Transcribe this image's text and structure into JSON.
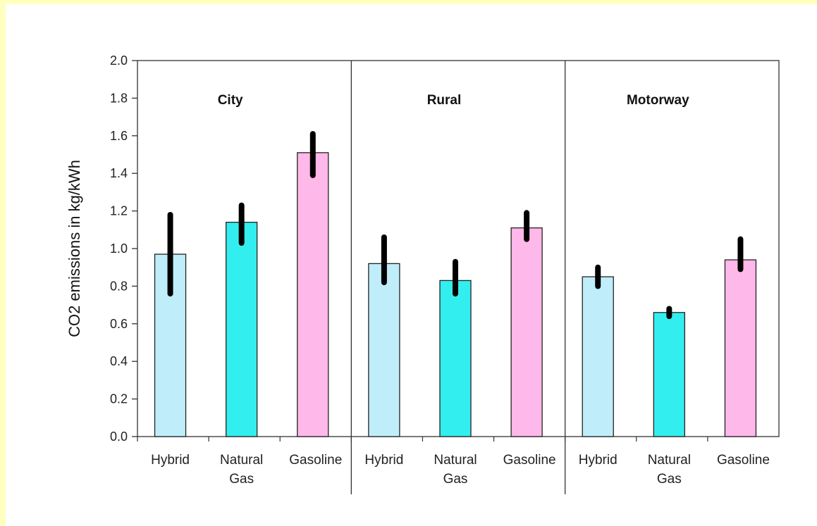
{
  "chart_data": {
    "type": "bar",
    "ylabel": "CO2 emissions in kg/kWh",
    "ylim": [
      0,
      2.0
    ],
    "yticks": [
      "0.0",
      "0.2",
      "0.4",
      "0.6",
      "0.8",
      "1.0",
      "1.2",
      "1.4",
      "1.6",
      "1.8",
      "2.0"
    ],
    "categories": [
      [
        "Hybrid"
      ],
      [
        "Natural",
        "Gas"
      ],
      [
        "Gasoline"
      ]
    ],
    "colors": [
      "#bfeefa",
      "#33eeee",
      "#ffb8ea"
    ],
    "panels": [
      {
        "title": "City",
        "values": [
          0.97,
          1.14,
          1.51
        ],
        "error_low": [
          0.76,
          1.03,
          1.39
        ],
        "error_high": [
          1.18,
          1.23,
          1.61
        ]
      },
      {
        "title": "Rural",
        "values": [
          0.92,
          0.83,
          1.11
        ],
        "error_low": [
          0.82,
          0.76,
          1.05
        ],
        "error_high": [
          1.06,
          0.93,
          1.19
        ]
      },
      {
        "title": "Motorway",
        "values": [
          0.85,
          0.66,
          0.94
        ],
        "error_low": [
          0.8,
          0.64,
          0.89
        ],
        "error_high": [
          0.9,
          0.68,
          1.05
        ]
      }
    ]
  }
}
